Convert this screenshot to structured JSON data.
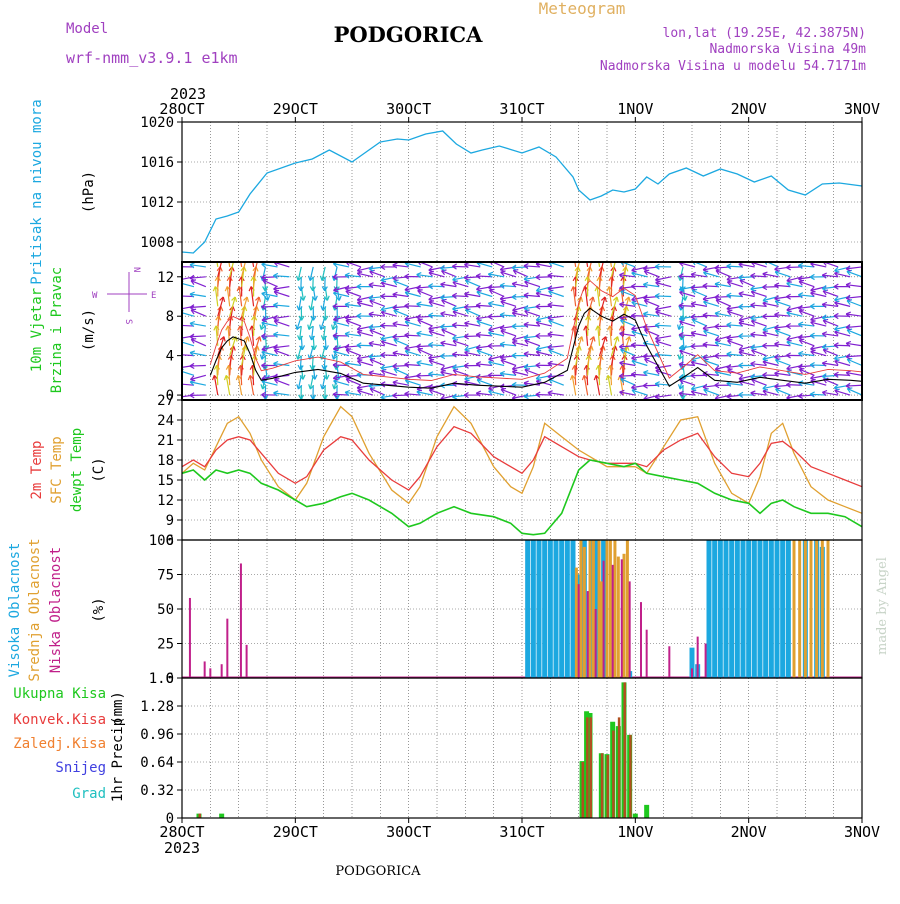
{
  "header": {
    "model_label": "Model",
    "model_name": "wrf-nmm_v3.9.1  e1km",
    "station": "PODGORICA",
    "chart_type": "Meteogram",
    "lonlat": "lon,lat (19.25E, 42.3875N)",
    "elevation": "Nadmorska Visina 49m",
    "model_elevation": "Nadmorska Visina u modelu 54.7171m",
    "footer_station": "PODGORICA",
    "credit": "made by Angel"
  },
  "colors": {
    "pressure": "#1ca8e0",
    "temp2m": "#e83c3c",
    "sfc": "#e0a030",
    "dewpt": "#1ec81e",
    "high_cloud": "#1ca8e0",
    "mid_cloud": "#e0a030",
    "low_cloud": "#c0208a",
    "total_precip": "#1ec81e",
    "conv_precip": "#e83c3c",
    "frozen": "#f08030",
    "snow": "#4040e0",
    "hail": "#20c0c0",
    "header_purple": "#a040c0",
    "header_orange": "#e0b060",
    "wind_label": "#1ec81e"
  },
  "chart_data": [
    {
      "type": "line",
      "panel": "pressure",
      "ylabel": "Pritisak na nivou mora",
      "unit": "(hPa)",
      "ylim": [
        1006,
        1020
      ],
      "yticks": [
        1008,
        1012,
        1016,
        1020
      ],
      "x_year": "2023",
      "x_tick_labels": [
        "28OCT",
        "29OCT",
        "30OCT",
        "31OCT",
        "1NOV",
        "2NOV",
        "3NOV"
      ],
      "x_bottom_labels": [
        "28OCT",
        "29OCT",
        "30OCT",
        "31OCT",
        "1NOV",
        "2NOV",
        "3NOV"
      ],
      "x_bottom_year": "2023",
      "grid": true,
      "series": [
        {
          "x": [
            0,
            0.1,
            0.2,
            0.3,
            0.4,
            0.5,
            0.6,
            0.75,
            1.0,
            1.15,
            1.3,
            1.5,
            1.6,
            1.75,
            1.9,
            2.0,
            2.15,
            2.3,
            2.42,
            2.55,
            2.65,
            2.8,
            3.0,
            3.15,
            3.3,
            3.45,
            3.5,
            3.6,
            3.7,
            3.8,
            3.9,
            4.0,
            4.1,
            4.2,
            4.3,
            4.45,
            4.6,
            4.75,
            4.9,
            5.05,
            5.2,
            5.35,
            5.5,
            5.65,
            5.8,
            6.0
          ],
          "values": [
            1007.0,
            1006.9,
            1008.0,
            1010.3,
            1010.6,
            1011.0,
            1012.8,
            1014.9,
            1015.9,
            1016.3,
            1017.2,
            1016.0,
            1016.8,
            1018.0,
            1018.3,
            1018.2,
            1018.8,
            1019.1,
            1017.8,
            1016.9,
            1017.2,
            1017.6,
            1016.9,
            1017.5,
            1016.5,
            1014.5,
            1013.2,
            1012.2,
            1012.6,
            1013.2,
            1013.0,
            1013.3,
            1014.5,
            1013.8,
            1014.8,
            1015.4,
            1014.6,
            1015.3,
            1014.8,
            1014.0,
            1014.6,
            1013.2,
            1012.7,
            1013.8,
            1013.9,
            1013.6
          ]
        }
      ]
    },
    {
      "type": "line",
      "panel": "wind",
      "ylabel": "10m Vjetar",
      "ylabel2": "Brzina i Pravac",
      "unit": "(m/s)",
      "compass": {
        "w": "W",
        "e": "E",
        "n": "N",
        "s": "S"
      },
      "ylim": [
        -0.5,
        13.5
      ],
      "yticks": [
        0,
        4,
        8,
        12
      ],
      "grid": true,
      "series": [
        {
          "name": "speed",
          "x": [
            0.25,
            0.3,
            0.35,
            0.4,
            0.45,
            0.5,
            0.55,
            0.6,
            0.65,
            0.7,
            0.8,
            1.0,
            1.2,
            1.4,
            1.6,
            1.8,
            2.0,
            2.2,
            2.4,
            2.6,
            2.8,
            3.0,
            3.2,
            3.4,
            3.5,
            3.55,
            3.6,
            3.7,
            3.8,
            3.9,
            4.0,
            4.1,
            4.3,
            4.45,
            4.55,
            4.7,
            4.9,
            5.1,
            5.3,
            5.5,
            5.7,
            5.9,
            6.0
          ],
          "values": [
            2.0,
            3.5,
            4.8,
            5.5,
            5.9,
            5.7,
            5.5,
            4.2,
            2.5,
            1.5,
            1.7,
            2.3,
            2.6,
            2.2,
            1.2,
            1.0,
            0.8,
            0.7,
            1.2,
            1.0,
            0.9,
            0.8,
            1.3,
            2.5,
            7.0,
            8.3,
            8.8,
            8.0,
            7.5,
            8.2,
            7.6,
            5.0,
            0.9,
            2.0,
            2.8,
            1.5,
            1.3,
            1.8,
            1.5,
            1.2,
            1.6,
            1.5,
            1.4
          ]
        }
      ],
      "wind_columns": 58,
      "wind_rows": [
        0,
        1,
        2,
        3,
        4,
        5,
        6,
        7,
        8,
        9,
        10,
        11,
        12,
        13
      ]
    },
    {
      "type": "line",
      "panel": "temperature",
      "ylabel": "2m Temp",
      "ylabel2": "SFC Temp",
      "ylabel3": "dewpt Temp",
      "unit": "(C)",
      "ylim": [
        6,
        27
      ],
      "yticks": [
        6,
        9,
        12,
        15,
        18,
        21,
        24,
        27
      ],
      "grid": true,
      "series": [
        {
          "name": "2m Temp",
          "x": [
            0,
            0.1,
            0.2,
            0.3,
            0.4,
            0.5,
            0.6,
            0.7,
            0.85,
            1.0,
            1.1,
            1.25,
            1.4,
            1.5,
            1.65,
            1.85,
            2.0,
            2.1,
            2.25,
            2.4,
            2.55,
            2.75,
            2.9,
            3.0,
            3.1,
            3.2,
            3.35,
            3.5,
            3.6,
            3.75,
            3.9,
            4.0,
            4.1,
            4.25,
            4.4,
            4.55,
            4.7,
            4.85,
            5.0,
            5.1,
            5.2,
            5.3,
            5.4,
            5.55,
            5.7,
            5.85,
            6.0
          ],
          "values": [
            17.0,
            18.0,
            17.0,
            19.5,
            21.0,
            21.5,
            21.0,
            19.0,
            16.0,
            14.5,
            15.5,
            19.5,
            21.5,
            21.0,
            18.0,
            15.0,
            13.5,
            15.5,
            20.0,
            23.0,
            22.0,
            18.5,
            17.0,
            16.0,
            18.0,
            21.5,
            20.0,
            18.5,
            18.0,
            17.5,
            17.5,
            17.5,
            17.0,
            19.5,
            21.0,
            22.0,
            18.5,
            16.0,
            15.5,
            17.5,
            20.5,
            20.8,
            19.5,
            17.0,
            16.0,
            15.0,
            14.0
          ]
        },
        {
          "name": "SFC Temp",
          "x": [
            0,
            0.1,
            0.2,
            0.3,
            0.4,
            0.5,
            0.6,
            0.7,
            0.85,
            1.0,
            1.1,
            1.25,
            1.4,
            1.5,
            1.65,
            1.85,
            2.0,
            2.1,
            2.25,
            2.4,
            2.55,
            2.75,
            2.9,
            3.0,
            3.1,
            3.2,
            3.35,
            3.5,
            3.6,
            3.75,
            3.9,
            4.0,
            4.1,
            4.25,
            4.4,
            4.55,
            4.7,
            4.85,
            5.0,
            5.1,
            5.2,
            5.3,
            5.4,
            5.55,
            5.7,
            5.85,
            6.0
          ],
          "values": [
            16.0,
            17.5,
            16.5,
            20.0,
            23.5,
            24.5,
            22.0,
            18.0,
            14.0,
            12.0,
            14.5,
            21.5,
            26.0,
            24.5,
            19.0,
            13.5,
            11.5,
            14.0,
            21.5,
            26.0,
            23.5,
            17.0,
            14.0,
            13.0,
            17.0,
            23.5,
            21.5,
            19.5,
            18.5,
            17.0,
            17.0,
            17.0,
            16.0,
            20.0,
            24.0,
            24.5,
            17.5,
            13.0,
            11.5,
            15.5,
            22.0,
            23.5,
            19.0,
            14.0,
            12.0,
            11.0,
            10.0
          ]
        },
        {
          "name": "dewpt Temp",
          "x": [
            0,
            0.1,
            0.2,
            0.3,
            0.4,
            0.5,
            0.6,
            0.7,
            0.85,
            1.0,
            1.1,
            1.25,
            1.4,
            1.5,
            1.65,
            1.85,
            2.0,
            2.1,
            2.25,
            2.4,
            2.55,
            2.75,
            2.9,
            3.0,
            3.1,
            3.2,
            3.35,
            3.5,
            3.6,
            3.75,
            3.9,
            4.0,
            4.1,
            4.25,
            4.4,
            4.55,
            4.7,
            4.85,
            5.0,
            5.1,
            5.2,
            5.3,
            5.4,
            5.55,
            5.7,
            5.85,
            6.0
          ],
          "values": [
            16.0,
            16.5,
            15.0,
            16.5,
            16.0,
            16.5,
            16.0,
            14.5,
            13.5,
            12.0,
            11.0,
            11.5,
            12.5,
            13.0,
            12.0,
            10.0,
            8.0,
            8.5,
            10.0,
            11.0,
            10.0,
            9.5,
            8.5,
            7.0,
            6.8,
            7.0,
            10.0,
            16.5,
            18.0,
            17.5,
            17.0,
            17.5,
            16.0,
            15.5,
            15.0,
            14.5,
            13.0,
            12.0,
            11.5,
            10.0,
            11.5,
            12.0,
            11.0,
            10.0,
            10.0,
            9.5,
            8.0
          ]
        }
      ]
    },
    {
      "type": "bar",
      "panel": "cloud",
      "ylabel": "Visoka Oblacnost",
      "ylabel2": "Srednja Oblacnost",
      "ylabel3": "Niska Oblacnost",
      "unit": "(%)",
      "ylim": [
        0,
        100
      ],
      "yticks": [
        0,
        25,
        50,
        75,
        100
      ],
      "grid": true,
      "series": [
        {
          "name": "Niska Oblacnost",
          "x": [
            0.07,
            0.2,
            0.25,
            0.35,
            0.4,
            0.52,
            0.57,
            3.5,
            3.58,
            3.65,
            3.72,
            3.8,
            3.88,
            3.95,
            4.05,
            4.1,
            4.3,
            4.5,
            4.55,
            4.62
          ],
          "values": [
            58,
            12,
            7,
            10,
            43,
            83,
            24,
            68,
            63,
            50,
            85,
            82,
            86,
            70,
            55,
            35,
            23,
            7,
            30,
            25
          ]
        },
        {
          "name": "Srednja Oblacnost",
          "x": [
            3.48,
            3.52,
            3.55,
            3.6,
            3.63,
            3.68,
            3.7,
            3.75,
            3.78,
            3.82,
            3.85,
            3.9,
            3.93,
            5.4,
            5.45,
            5.5,
            5.55,
            5.6,
            5.65,
            5.7
          ],
          "values": [
            80,
            100,
            95,
            100,
            100,
            100,
            70,
            100,
            100,
            100,
            88,
            90,
            100,
            100,
            100,
            100,
            100,
            100,
            100,
            100
          ]
        },
        {
          "name": "Visoka Oblacnost",
          "x": [
            3.05,
            3.1,
            3.15,
            3.2,
            3.25,
            3.3,
            3.35,
            3.4,
            3.45,
            3.5,
            3.55,
            3.62,
            3.66,
            3.72,
            3.95,
            4.5,
            4.55,
            4.65,
            4.7,
            4.75,
            4.8,
            4.85,
            4.9,
            4.95,
            5.0,
            5.05,
            5.1,
            5.15,
            5.2,
            5.25,
            5.3,
            5.35,
            5.5,
            5.6,
            5.65
          ],
          "values": [
            100,
            100,
            100,
            100,
            100,
            100,
            100,
            100,
            100,
            75,
            100,
            100,
            100,
            100,
            5,
            22,
            10,
            100,
            100,
            100,
            100,
            100,
            100,
            100,
            100,
            100,
            100,
            100,
            100,
            100,
            100,
            100,
            100,
            100,
            95
          ]
        }
      ]
    },
    {
      "type": "bar",
      "panel": "precip",
      "ylabel": "1hr Precip",
      "unit": "(mm)",
      "legend": [
        "Ukupna Kisa",
        "Konvek.Kisa",
        "Zaledj.Kisa",
        "Snijeg",
        "Grad"
      ],
      "ylim": [
        0,
        1.6
      ],
      "yticks": [
        0,
        0.32,
        0.64,
        0.96,
        1.28,
        1.6
      ],
      "ytick_labels": [
        "0",
        "0.32",
        "0.64",
        "0.96",
        "1.28",
        "1.6"
      ],
      "grid": true,
      "series": [
        {
          "name": "Ukupna Kisa",
          "x": [
            0.15,
            0.35,
            3.53,
            3.57,
            3.6,
            3.7,
            3.75,
            3.8,
            3.85,
            3.9,
            3.95,
            4.0,
            4.1
          ],
          "values": [
            0.05,
            0.05,
            0.65,
            1.22,
            1.2,
            0.74,
            0.73,
            1.1,
            1.05,
            1.55,
            0.95,
            0.05,
            0.15
          ]
        },
        {
          "name": "Konvek.Kisa",
          "x": [
            0.15,
            3.53,
            3.57,
            3.6,
            3.7,
            3.75,
            3.8,
            3.85,
            3.9,
            3.95
          ],
          "values": [
            0.05,
            0.64,
            1.15,
            1.15,
            0.74,
            0.72,
            1.0,
            1.15,
            1.55,
            0.95
          ]
        }
      ]
    }
  ]
}
